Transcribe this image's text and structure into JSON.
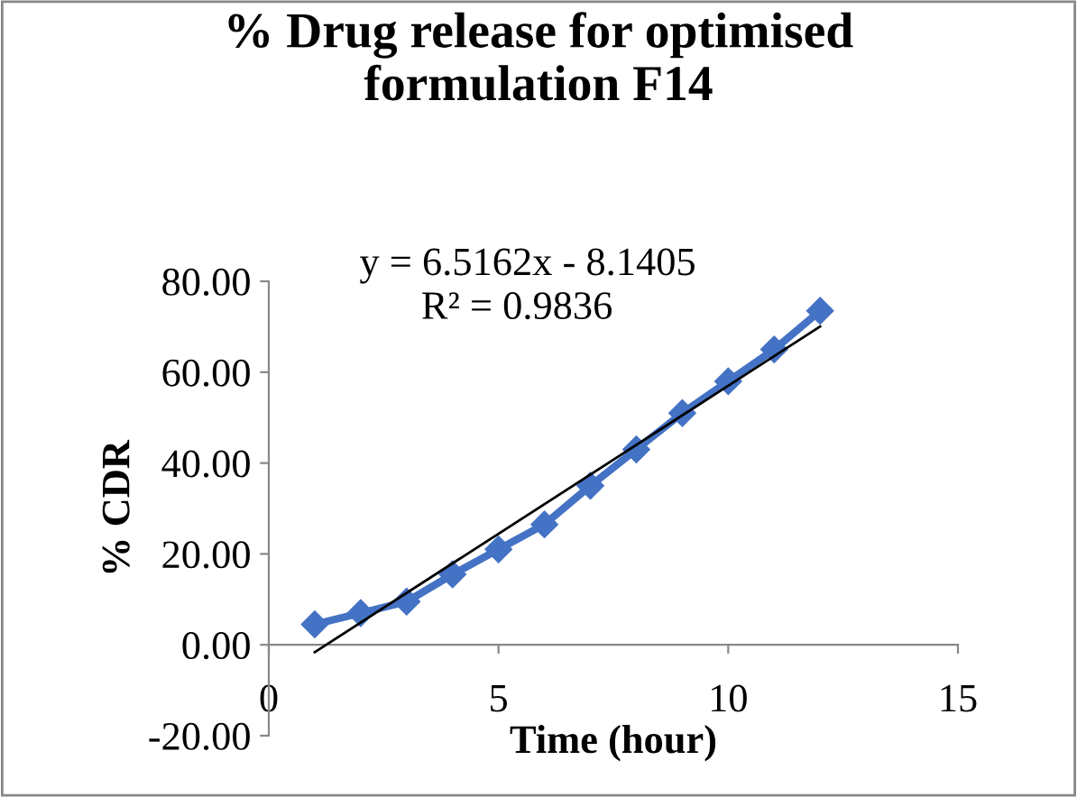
{
  "chart_data": {
    "type": "line",
    "title": "% Drug release for optimised\nformulation F14",
    "xlabel": "Time (hour)",
    "ylabel": "% CDR",
    "x": [
      1,
      2,
      3,
      4,
      5,
      6,
      7,
      8,
      9,
      10,
      11,
      12
    ],
    "series": [
      {
        "color": "#4472c4",
        "values": [
          4.5,
          7,
          9.5,
          15.5,
          21,
          26.5,
          35,
          43,
          51,
          58,
          65,
          73.5
        ],
        "marker": "diamond"
      },
      {
        "type": "line",
        "color": "#000000",
        "x": [
          1,
          12
        ],
        "values": [
          -1.62,
          70.05
        ],
        "marker": "none"
      }
    ],
    "annotations": [
      "y = 6.5162x - 8.1405",
      "R² = 0.9836"
    ],
    "xlim": [
      0,
      15
    ],
    "xticks": [
      0,
      5,
      10,
      15
    ],
    "ylim": [
      -20,
      80
    ],
    "yticks": [
      {
        "value": -20,
        "label": "-20.00"
      },
      {
        "value": 0,
        "label": "0.00"
      },
      {
        "value": 20,
        "label": "20.00"
      },
      {
        "value": 40,
        "label": "40.00"
      },
      {
        "value": 60,
        "label": "60.00"
      },
      {
        "value": 80,
        "label": "80.00"
      }
    ],
    "grid": false,
    "legend": false
  }
}
